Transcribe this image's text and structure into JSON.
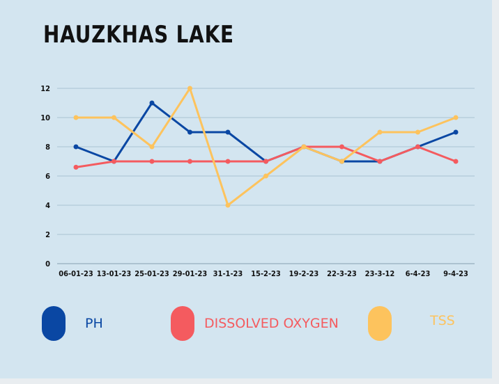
{
  "chart_data": {
    "type": "line",
    "title": "HAUZKHAS LAKE",
    "categories": [
      "06-01-23",
      "13-01-23",
      "25-01-23",
      "29-01-23",
      "31-1-23",
      "15-2-23",
      "19-2-23",
      "22-3-23",
      "23-3-12",
      "6-4-23",
      "9-4-23"
    ],
    "ylim": [
      0,
      12
    ],
    "yticks": [
      0,
      2,
      4,
      6,
      8,
      10,
      12
    ],
    "grid": true,
    "legend_position": "bottom",
    "series": [
      {
        "name": "PH",
        "color": "#0a47a3",
        "values": [
          8,
          7,
          11,
          9,
          9,
          7,
          8,
          7,
          7,
          8,
          9
        ]
      },
      {
        "name": "DISSOLVED OXYGEN",
        "color": "#f45b5f",
        "values": [
          6.6,
          7,
          7,
          7,
          7,
          7,
          8,
          8,
          7,
          8,
          7
        ]
      },
      {
        "name": "TSS",
        "color": "#fdc35d",
        "values": [
          10,
          10,
          8,
          12,
          4,
          6,
          8,
          7,
          9,
          9,
          10
        ]
      }
    ]
  }
}
